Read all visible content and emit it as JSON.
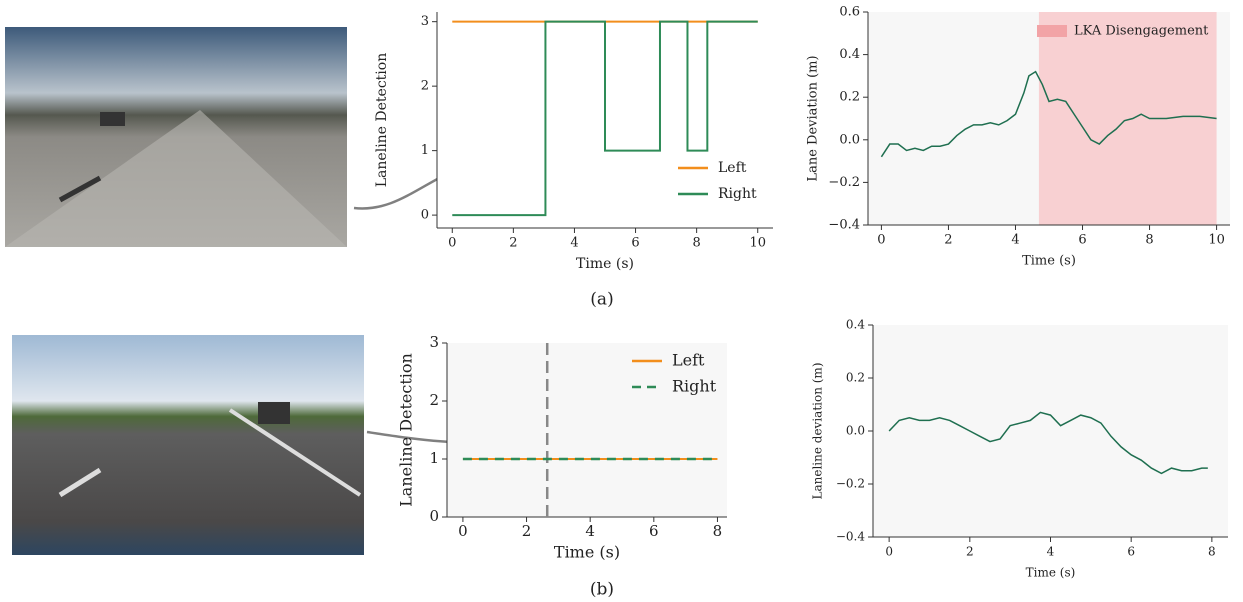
{
  "chart_data": [
    {
      "type": "line",
      "xlabel": "Time (s)",
      "ylabel": "Laneline Detection",
      "xlim": [
        -0.5,
        10.5
      ],
      "ylim": [
        -0.2,
        3.15
      ],
      "xticks": [
        0,
        2,
        4,
        6,
        8,
        10
      ],
      "yticks": [
        0,
        1,
        2,
        3
      ],
      "background": "#ffffff",
      "legend": "lower right",
      "series": [
        {
          "name": "Left",
          "color": "#f28e1c",
          "x": [
            0,
            10
          ],
          "values": [
            3,
            3
          ]
        },
        {
          "name": "Right",
          "color": "#2e8b57",
          "x": [
            0,
            3.05,
            3.05,
            5,
            5,
            6.8,
            6.8,
            7.7,
            7.7,
            8.35,
            8.35,
            10
          ],
          "values": [
            0,
            0,
            3,
            3,
            1,
            1,
            3,
            3,
            1,
            1,
            3,
            3
          ]
        }
      ]
    },
    {
      "type": "line",
      "xlabel": "Time (s)",
      "ylabel": "Lane Deviation (m)",
      "xlim": [
        -0.4,
        10.4
      ],
      "ylim": [
        -0.4,
        0.6
      ],
      "xticks": [
        0,
        2,
        4,
        6,
        8,
        10
      ],
      "yticks": [
        {
          "value": -0.4,
          "label": "−0.4"
        },
        {
          "value": -0.2,
          "label": "−0.2"
        },
        {
          "value": 0,
          "label": "0.0"
        },
        0.2,
        0.4,
        0.6
      ],
      "background": "#f7f7f7",
      "span": {
        "x0": 4.7,
        "x1": 10,
        "label": "LKA Disengagement",
        "color": "#f7c6c8"
      },
      "series": [
        {
          "color": "#1f6f50",
          "x": [
            0,
            0.25,
            0.5,
            0.75,
            1,
            1.25,
            1.5,
            1.75,
            2,
            2.25,
            2.5,
            2.75,
            3,
            3.25,
            3.5,
            3.75,
            4,
            4.25,
            4.4,
            4.6,
            4.8,
            5,
            5.25,
            5.5,
            5.75,
            6,
            6.25,
            6.5,
            6.75,
            7,
            7.25,
            7.5,
            7.75,
            8,
            8.5,
            9,
            9.5,
            10
          ],
          "values": [
            -0.08,
            -0.02,
            -0.02,
            -0.05,
            -0.04,
            -0.05,
            -0.03,
            -0.03,
            -0.02,
            0.02,
            0.05,
            0.07,
            0.07,
            0.08,
            0.07,
            0.09,
            0.12,
            0.22,
            0.3,
            0.32,
            0.26,
            0.18,
            0.19,
            0.18,
            0.12,
            0.06,
            0.0,
            -0.02,
            0.02,
            0.05,
            0.09,
            0.1,
            0.12,
            0.1,
            0.1,
            0.11,
            0.11,
            0.1
          ]
        }
      ]
    },
    {
      "type": "line",
      "xlabel": "Time (s)",
      "ylabel": "Laneline Detection",
      "xlim": [
        -0.5,
        8.3
      ],
      "ylim": [
        0,
        3
      ],
      "xticks": [
        0,
        2,
        4,
        6,
        8
      ],
      "yticks": [
        0,
        1,
        2,
        3
      ],
      "background": "#f7f7f7",
      "legend": "upper right",
      "vline": {
        "x": 2.65,
        "color": "#888888"
      },
      "series": [
        {
          "name": "Left",
          "color": "#f28e1c",
          "x": [
            0,
            8
          ],
          "values": [
            1,
            1
          ]
        },
        {
          "name": "Right",
          "color": "#2e8b57",
          "dash": true,
          "x": [
            0,
            8
          ],
          "values": [
            1,
            1
          ]
        }
      ]
    },
    {
      "type": "line",
      "xlabel": "Time (s)",
      "ylabel": "Laneline deviation (m)",
      "xlim": [
        -0.4,
        8.4
      ],
      "ylim": [
        -0.4,
        0.4
      ],
      "xticks": [
        0,
        2,
        4,
        6,
        8
      ],
      "yticks": [
        {
          "value": -0.4,
          "label": "−0.4"
        },
        {
          "value": -0.2,
          "label": "−0.2"
        },
        {
          "value": 0,
          "label": "0.0"
        },
        0.2,
        0.4
      ],
      "background": "#f7f7f7",
      "series": [
        {
          "color": "#1f6f50",
          "x": [
            0,
            0.25,
            0.5,
            0.75,
            1,
            1.25,
            1.5,
            1.75,
            2,
            2.25,
            2.5,
            2.75,
            3,
            3.25,
            3.5,
            3.75,
            4,
            4.25,
            4.5,
            4.75,
            5,
            5.25,
            5.5,
            5.75,
            6,
            6.25,
            6.5,
            6.75,
            7,
            7.25,
            7.5,
            7.75,
            7.9
          ],
          "values": [
            0.0,
            0.04,
            0.05,
            0.04,
            0.04,
            0.05,
            0.04,
            0.02,
            0.0,
            -0.02,
            -0.04,
            -0.03,
            0.02,
            0.03,
            0.04,
            0.07,
            0.06,
            0.02,
            0.04,
            0.06,
            0.05,
            0.03,
            -0.02,
            -0.06,
            -0.09,
            -0.11,
            -0.14,
            -0.16,
            -0.14,
            -0.15,
            -0.15,
            -0.14,
            -0.14
          ]
        }
      ]
    }
  ],
  "captions": [
    "(a)",
    "(b)"
  ]
}
